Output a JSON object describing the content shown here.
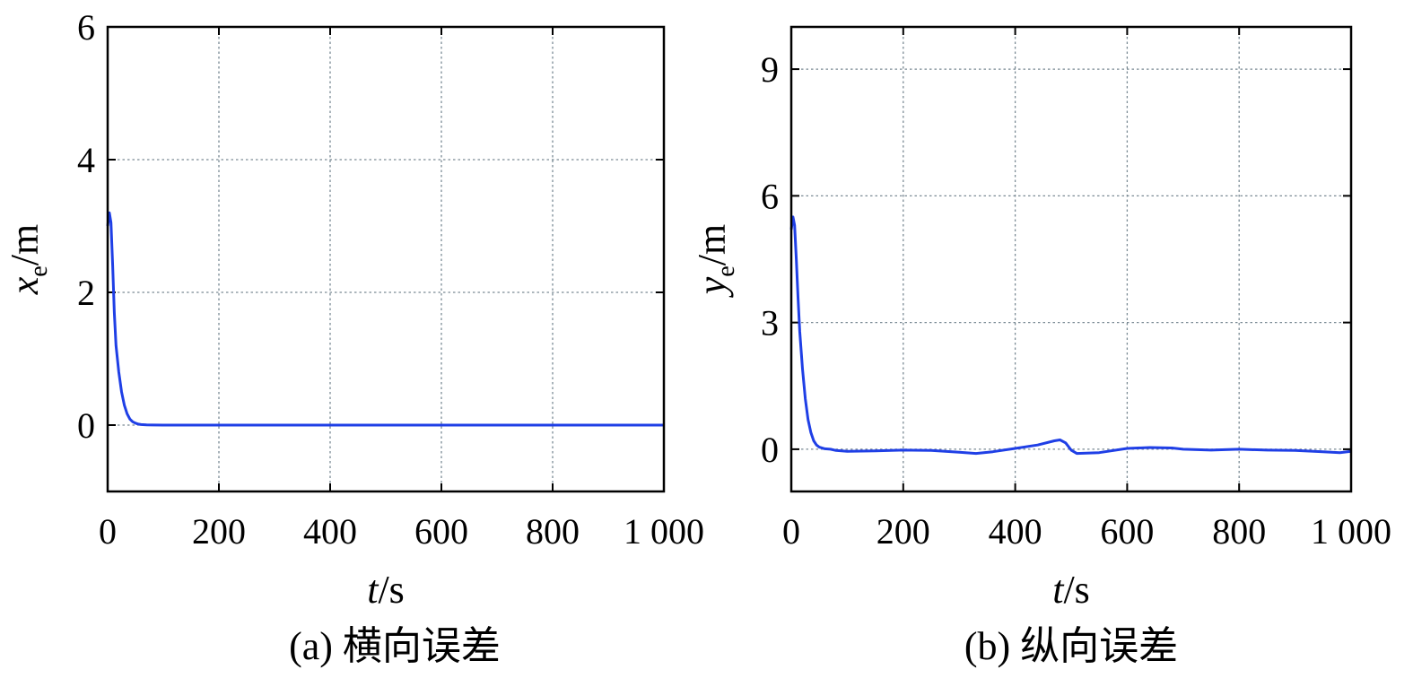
{
  "chart_data": [
    {
      "type": "line",
      "caption": "(a) 横向误差",
      "xlabel_var": "t",
      "xlabel_unit": "/s",
      "ylabel_var": "x",
      "ylabel_sub": "e",
      "ylabel_unit": "/m",
      "xlim": [
        0,
        1000
      ],
      "ylim": [
        -1,
        6
      ],
      "xticks": [
        0,
        200,
        400,
        600,
        800,
        1000
      ],
      "xtick_labels": [
        "0",
        "200",
        "400",
        "600",
        "800",
        "1 000"
      ],
      "yticks": [
        0,
        2,
        4,
        6
      ],
      "ytick_labels": [
        "0",
        "2",
        "4",
        "6"
      ],
      "grid": true,
      "line_color": "#1f3fe6",
      "series": [
        {
          "x": [
            0,
            3,
            6,
            9,
            12,
            15,
            20,
            25,
            30,
            35,
            40,
            45,
            50,
            55,
            60,
            70,
            80,
            100,
            150,
            200,
            300,
            400,
            500,
            600,
            700,
            800,
            900,
            1000
          ],
          "y": [
            3.0,
            3.2,
            3.05,
            2.4,
            1.7,
            1.2,
            0.8,
            0.5,
            0.3,
            0.17,
            0.09,
            0.05,
            0.03,
            0.015,
            0.008,
            0.003,
            0.001,
            0,
            0,
            0,
            0,
            0,
            0,
            0,
            0,
            0,
            0,
            0
          ]
        }
      ]
    },
    {
      "type": "line",
      "caption": "(b) 纵向误差",
      "xlabel_var": "t",
      "xlabel_unit": "/s",
      "ylabel_var": "y",
      "ylabel_sub": "e",
      "ylabel_unit": "/m",
      "xlim": [
        0,
        1000
      ],
      "ylim": [
        -1,
        10
      ],
      "xticks": [
        0,
        200,
        400,
        600,
        800,
        1000
      ],
      "xtick_labels": [
        "0",
        "200",
        "400",
        "600",
        "800",
        "1 000"
      ],
      "yticks": [
        0,
        3,
        6,
        9
      ],
      "ytick_labels": [
        "0",
        "3",
        "6",
        "9"
      ],
      "grid": true,
      "line_color": "#1f3fe6",
      "series": [
        {
          "x": [
            0,
            3,
            6,
            9,
            12,
            15,
            20,
            25,
            30,
            35,
            40,
            45,
            50,
            60,
            70,
            80,
            100,
            150,
            200,
            250,
            300,
            330,
            360,
            400,
            440,
            470,
            480,
            490,
            500,
            510,
            550,
            600,
            640,
            680,
            700,
            750,
            800,
            850,
            900,
            950,
            980,
            1000
          ],
          "y": [
            5.2,
            5.5,
            5.3,
            4.5,
            3.6,
            2.8,
            1.9,
            1.2,
            0.7,
            0.4,
            0.2,
            0.1,
            0.05,
            0.01,
            0,
            -0.03,
            -0.05,
            -0.04,
            -0.02,
            -0.03,
            -0.07,
            -0.1,
            -0.06,
            0.02,
            0.1,
            0.2,
            0.22,
            0.15,
            -0.02,
            -0.1,
            -0.08,
            0.02,
            0.04,
            0.03,
            0,
            -0.02,
            0,
            -0.02,
            -0.03,
            -0.06,
            -0.08,
            -0.05
          ]
        }
      ]
    }
  ]
}
